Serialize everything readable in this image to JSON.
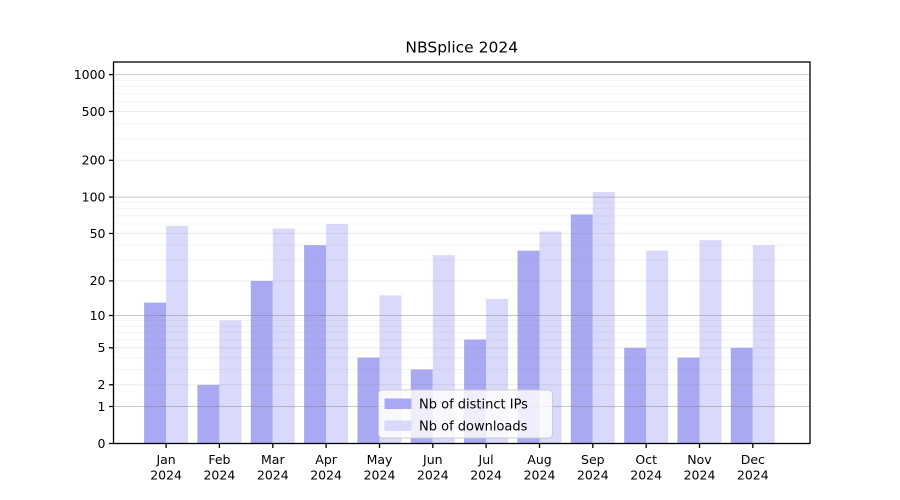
{
  "title": "NBSplice 2024",
  "chart_data": {
    "type": "bar",
    "title": "NBSplice 2024",
    "categories": [
      "Jan",
      "Feb",
      "Mar",
      "Apr",
      "May",
      "Jun",
      "Jul",
      "Aug",
      "Sep",
      "Oct",
      "Nov",
      "Dec"
    ],
    "category_year_line": "2024",
    "series": [
      {
        "name": "Nb of distinct IPs",
        "color": "#a9a9f3",
        "values": [
          13,
          2,
          20,
          40,
          4,
          3,
          6,
          36,
          72,
          5,
          4,
          5
        ]
      },
      {
        "name": "Nb of downloads",
        "color": "#d9d9fb",
        "values": [
          58,
          9,
          55,
          60,
          15,
          33,
          14,
          52,
          110,
          36,
          44,
          40
        ]
      }
    ],
    "xlabel": "",
    "ylabel": "",
    "yscale": "log1p",
    "yticks": [
      0,
      1,
      2,
      5,
      10,
      20,
      50,
      100,
      200,
      500,
      1000
    ],
    "ylim": [
      0,
      1270
    ],
    "grid": true,
    "gridline_major_values": [
      1,
      10,
      100,
      1000
    ],
    "legend_position": "lower center inside",
    "colors": {
      "bar_distinct_ips": "#a9a9f3",
      "bar_downloads": "#d9d9fb",
      "grid_major": "#c6c6c6",
      "grid_mid": "#e7e7e7",
      "grid_minor": "#f1f1f1",
      "axis": "#000000",
      "text": "#000000",
      "background": "#ffffff"
    }
  }
}
